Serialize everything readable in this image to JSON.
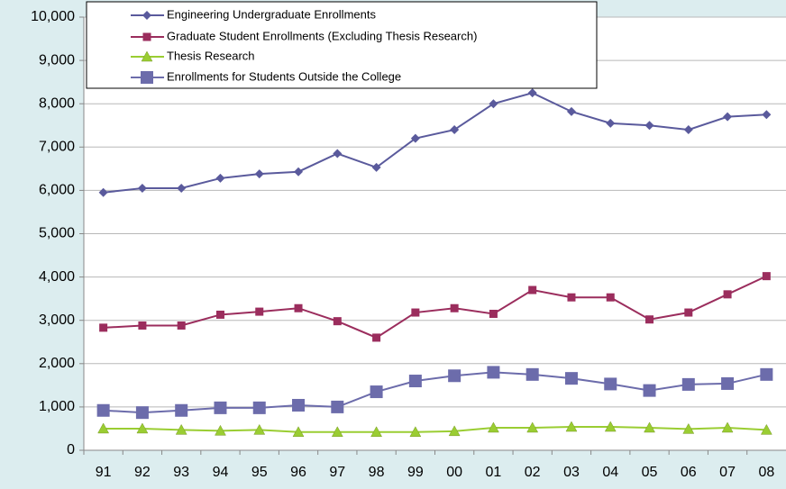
{
  "chart_data": {
    "type": "line",
    "categories": [
      "91",
      "92",
      "93",
      "94",
      "95",
      "96",
      "97",
      "98",
      "99",
      "00",
      "01",
      "02",
      "03",
      "04",
      "05",
      "06",
      "07",
      "08"
    ],
    "series": [
      {
        "name": "Engineering Undergraduate Enrollments",
        "color": "#5a5a9c",
        "marker": "diamond",
        "values": [
          5950,
          6050,
          6050,
          6280,
          6380,
          6430,
          6850,
          6530,
          7200,
          7400,
          8000,
          8250,
          7820,
          7550,
          7500,
          7400,
          7700,
          7750
        ]
      },
      {
        "name": "Graduate Student Enrollments (Excluding Thesis Research)",
        "color": "#9b2d5d",
        "marker": "square",
        "values": [
          2830,
          2880,
          2880,
          3130,
          3200,
          3280,
          2980,
          2600,
          3180,
          3280,
          3150,
          3700,
          3530,
          3530,
          3020,
          3180,
          3600,
          4020
        ]
      },
      {
        "name": "Thesis Research",
        "color": "#9acd32",
        "marker": "triangle",
        "values": [
          500,
          500,
          470,
          450,
          470,
          420,
          420,
          420,
          420,
          440,
          520,
          520,
          540,
          540,
          520,
          490,
          520,
          470
        ]
      },
      {
        "name": "Enrollments for Students Outside the College",
        "color": "#6c6cab",
        "marker": "bigsquare",
        "values": [
          920,
          870,
          920,
          980,
          980,
          1040,
          1000,
          1350,
          1600,
          1720,
          1800,
          1750,
          1660,
          1530,
          1380,
          1520,
          1540,
          1750
        ]
      }
    ],
    "ylim": [
      0,
      10000
    ],
    "yticks": [
      0,
      {
        "value": 1000,
        "label": "1,000"
      },
      {
        "value": 2000,
        "label": "2,000"
      },
      {
        "value": 3000,
        "label": "3,000"
      },
      {
        "value": 4000,
        "label": "4,000"
      },
      {
        "value": 5000,
        "label": "5,000"
      },
      {
        "value": 6000,
        "label": "6,000"
      },
      {
        "value": 7000,
        "label": "7,000"
      },
      {
        "value": 8000,
        "label": "8,000"
      },
      {
        "value": 9000,
        "label": "9,000"
      },
      {
        "value": 10000,
        "label": "10,000"
      }
    ],
    "grid": true
  }
}
